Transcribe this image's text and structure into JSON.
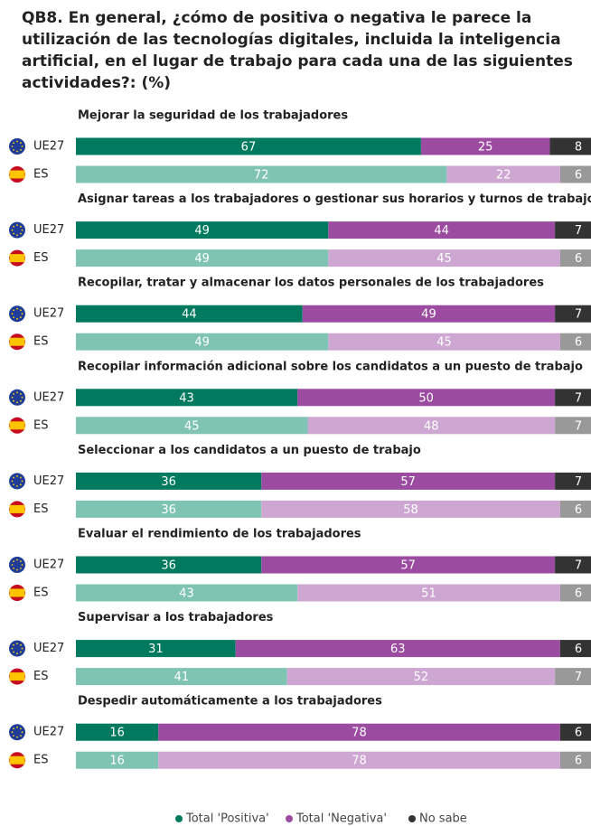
{
  "chart_data": {
    "type": "bar",
    "title": "QB8. En general, ¿cómo de positiva o negativa le parece la utilización de las tecnologías digitales, incluida la inteligencia artificial, en el lugar de trabajo para cada una de las siguientes actividades?: (%)",
    "groups": [
      "Mejorar la seguridad de los trabajadores",
      "Asignar tareas a los trabajadores o gestionar sus horarios y turnos de trabajo",
      "Recopilar, tratar y almacenar los datos personales de los trabajadores",
      "Recopilar información adicional sobre los candidatos a un puesto de trabajo",
      "Seleccionar a los candidatos a un puesto de trabajo",
      "Evaluar el rendimiento de los trabajadores",
      "Supervisar a los trabajadores",
      "Despedir automáticamente a los trabajadores"
    ],
    "categories": [
      "UE27",
      "ES",
      "UE27",
      "ES",
      "UE27",
      "ES",
      "UE27",
      "ES",
      "UE27",
      "ES",
      "UE27",
      "ES",
      "UE27",
      "ES",
      "UE27",
      "ES"
    ],
    "series": [
      {
        "name": "Total 'Positiva'",
        "colors": [
          "#007a5e",
          "#7fc4b3"
        ],
        "values": [
          67,
          72,
          49,
          49,
          44,
          49,
          43,
          45,
          36,
          36,
          36,
          43,
          31,
          41,
          16,
          16
        ]
      },
      {
        "name": "Total 'Negativa'",
        "colors": [
          "#9b4ba0",
          "#cda6d1"
        ],
        "values": [
          25,
          22,
          44,
          45,
          49,
          45,
          50,
          48,
          57,
          58,
          57,
          51,
          63,
          52,
          78,
          78
        ]
      },
      {
        "name": "No sabe",
        "colors": [
          "#333333",
          "#999999"
        ],
        "values": [
          8,
          6,
          7,
          6,
          7,
          6,
          7,
          7,
          7,
          6,
          7,
          6,
          6,
          7,
          6,
          6
        ]
      }
    ],
    "xlim": [
      0,
      100
    ],
    "legend": "bottom"
  }
}
